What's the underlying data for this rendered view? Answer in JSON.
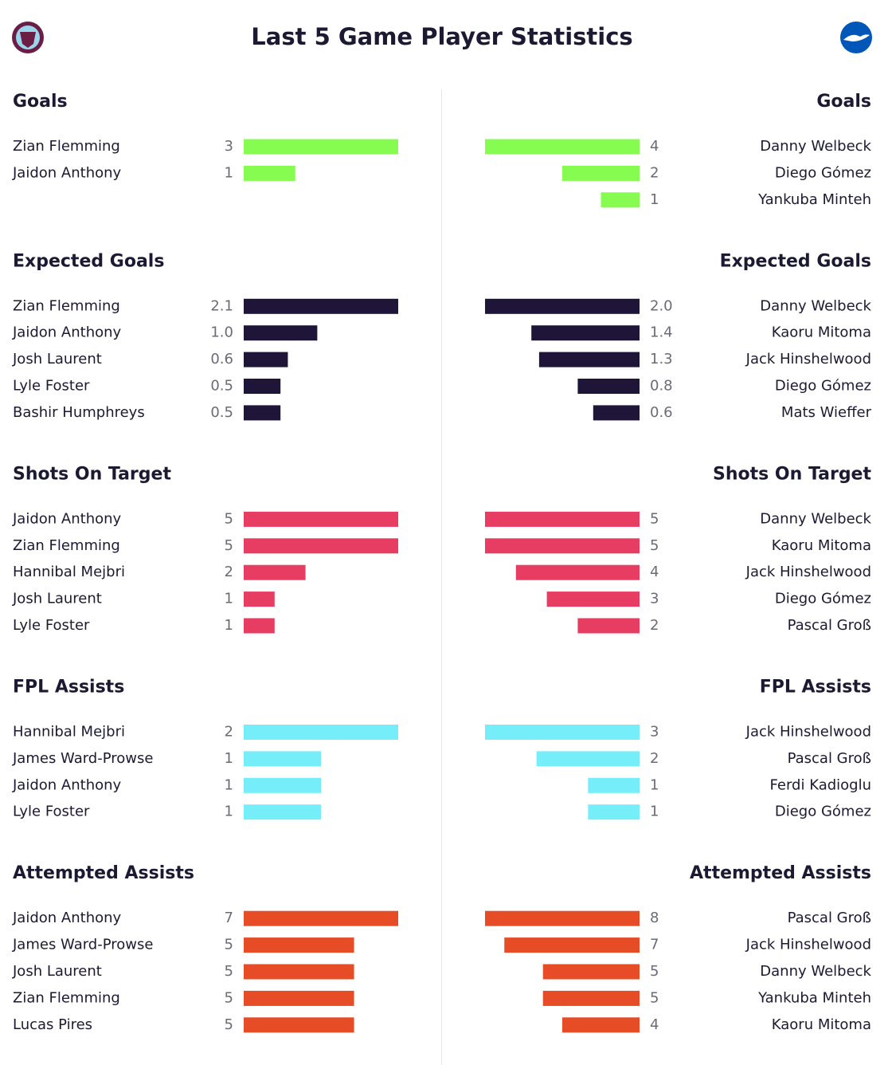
{
  "title": "Last 5 Game Player Statistics",
  "chart_data": [
    {
      "type": "bar",
      "title": "Goals",
      "color": "#85fc4f",
      "home": {
        "categories": [
          "Zian Flemming",
          "Jaidon Anthony"
        ],
        "values": [
          3,
          1
        ]
      },
      "away": {
        "categories": [
          "Danny Welbeck",
          "Diego Gómez",
          "Yankuba Minteh"
        ],
        "values": [
          4,
          2,
          1
        ]
      }
    },
    {
      "type": "bar",
      "title": "Expected Goals",
      "color": "#1e1538",
      "home": {
        "categories": [
          "Zian Flemming",
          "Jaidon Anthony",
          "Josh Laurent",
          "Lyle Foster",
          "Bashir Humphreys"
        ],
        "values": [
          2.1,
          1.0,
          0.6,
          0.5,
          0.5
        ],
        "value_labels": [
          "2.1",
          "1.0",
          "0.6",
          "0.5",
          "0.5"
        ]
      },
      "away": {
        "categories": [
          "Danny Welbeck",
          "Kaoru Mitoma",
          "Jack Hinshelwood",
          "Diego Gómez",
          "Mats Wieffer"
        ],
        "values": [
          2.0,
          1.4,
          1.3,
          0.8,
          0.6
        ],
        "value_labels": [
          "2.0",
          "1.4",
          "1.3",
          "0.8",
          "0.6"
        ]
      }
    },
    {
      "type": "bar",
      "title": "Shots On Target",
      "color": "#e83d63",
      "home": {
        "categories": [
          "Jaidon Anthony",
          "Zian Flemming",
          "Hannibal Mejbri",
          "Josh Laurent",
          "Lyle Foster"
        ],
        "values": [
          5,
          5,
          2,
          1,
          1
        ]
      },
      "away": {
        "categories": [
          "Danny Welbeck",
          "Kaoru Mitoma",
          "Jack Hinshelwood",
          "Diego Gómez",
          "Pascal Groß"
        ],
        "values": [
          5,
          5,
          4,
          3,
          2
        ]
      }
    },
    {
      "type": "bar",
      "title": "FPL Assists",
      "color": "#76eefa",
      "home": {
        "categories": [
          "Hannibal Mejbri",
          "James Ward-Prowse",
          "Jaidon Anthony",
          "Lyle Foster"
        ],
        "values": [
          2,
          1,
          1,
          1
        ]
      },
      "away": {
        "categories": [
          "Jack Hinshelwood",
          "Pascal Groß",
          "Ferdi Kadioglu",
          "Diego Gómez"
        ],
        "values": [
          3,
          2,
          1,
          1
        ]
      }
    },
    {
      "type": "bar",
      "title": "Attempted Assists",
      "color": "#e64d27",
      "home": {
        "categories": [
          "Jaidon Anthony",
          "James Ward-Prowse",
          "Josh Laurent",
          "Zian Flemming",
          "Lucas Pires"
        ],
        "values": [
          7,
          5,
          5,
          5,
          5
        ]
      },
      "away": {
        "categories": [
          "Pascal Groß",
          "Jack Hinshelwood",
          "Danny Welbeck",
          "Yankuba Minteh",
          "Kaoru Mitoma"
        ],
        "values": [
          8,
          7,
          5,
          5,
          4
        ]
      }
    }
  ]
}
